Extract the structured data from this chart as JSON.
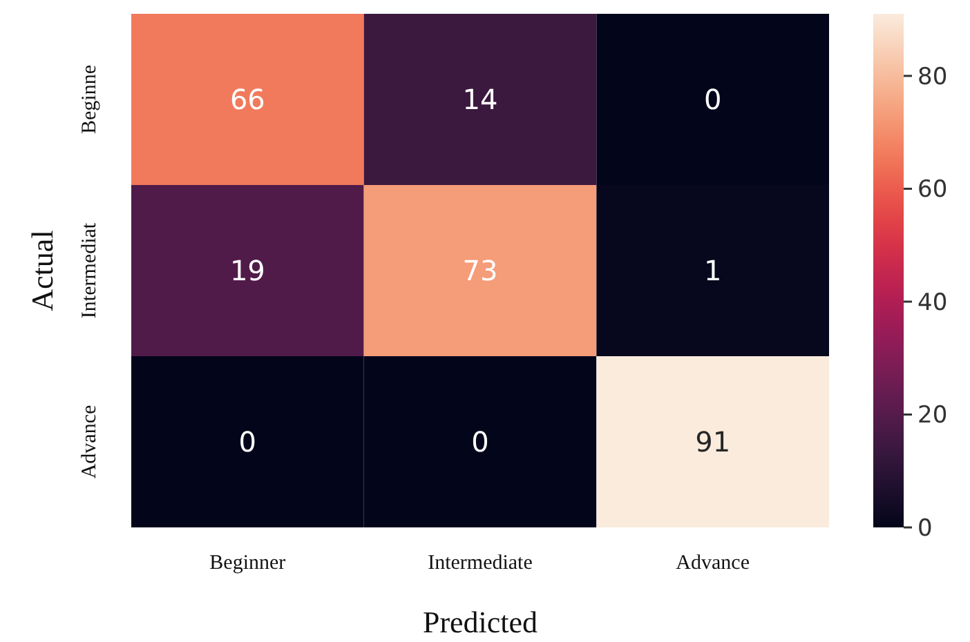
{
  "chart_data": {
    "type": "heatmap",
    "xlabel": "Predicted",
    "ylabel": "Actual",
    "categories": [
      "Beginner",
      "Intermediate",
      "Advance"
    ],
    "y_categories": [
      "Beginne",
      "Intermediat",
      "Advance"
    ],
    "cells": [
      [
        66,
        14,
        0
      ],
      [
        19,
        73,
        1
      ],
      [
        0,
        0,
        91
      ]
    ],
    "clim": [
      0,
      91
    ],
    "cticks": [
      0,
      20,
      40,
      60,
      80
    ],
    "data_labels": true
  }
}
